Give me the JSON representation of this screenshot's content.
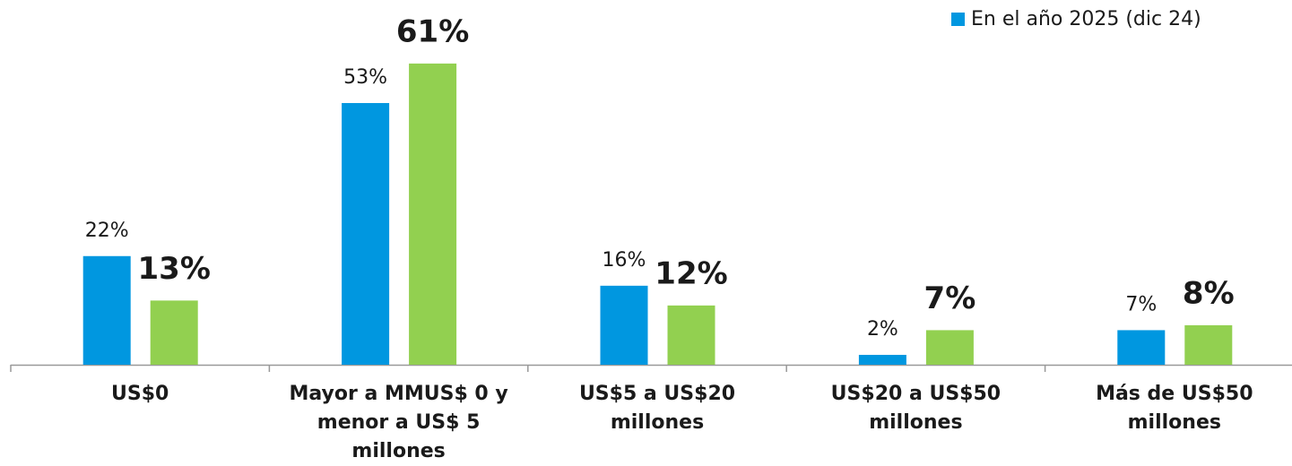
{
  "chart_data": {
    "type": "bar",
    "categories": [
      "US$0",
      "Mayor a MMUS$ 0 y menor a US$ 5 millones",
      "US$5 a US$20 millones",
      "US$20 a US$50 millones",
      "Más de US$50 millones"
    ],
    "series": [
      {
        "name": "En el año 2025 (dic 24)",
        "color": "#0097e0",
        "values": [
          22,
          53,
          16,
          2,
          7
        ],
        "value_labels": [
          "22%",
          "53%",
          "16%",
          "2%",
          "7%"
        ]
      },
      {
        "color": "#92d050",
        "values": [
          13,
          61,
          12,
          7,
          8
        ],
        "value_labels": [
          "13%",
          "61%",
          "12%",
          "7%",
          "8%"
        ]
      }
    ]
  }
}
